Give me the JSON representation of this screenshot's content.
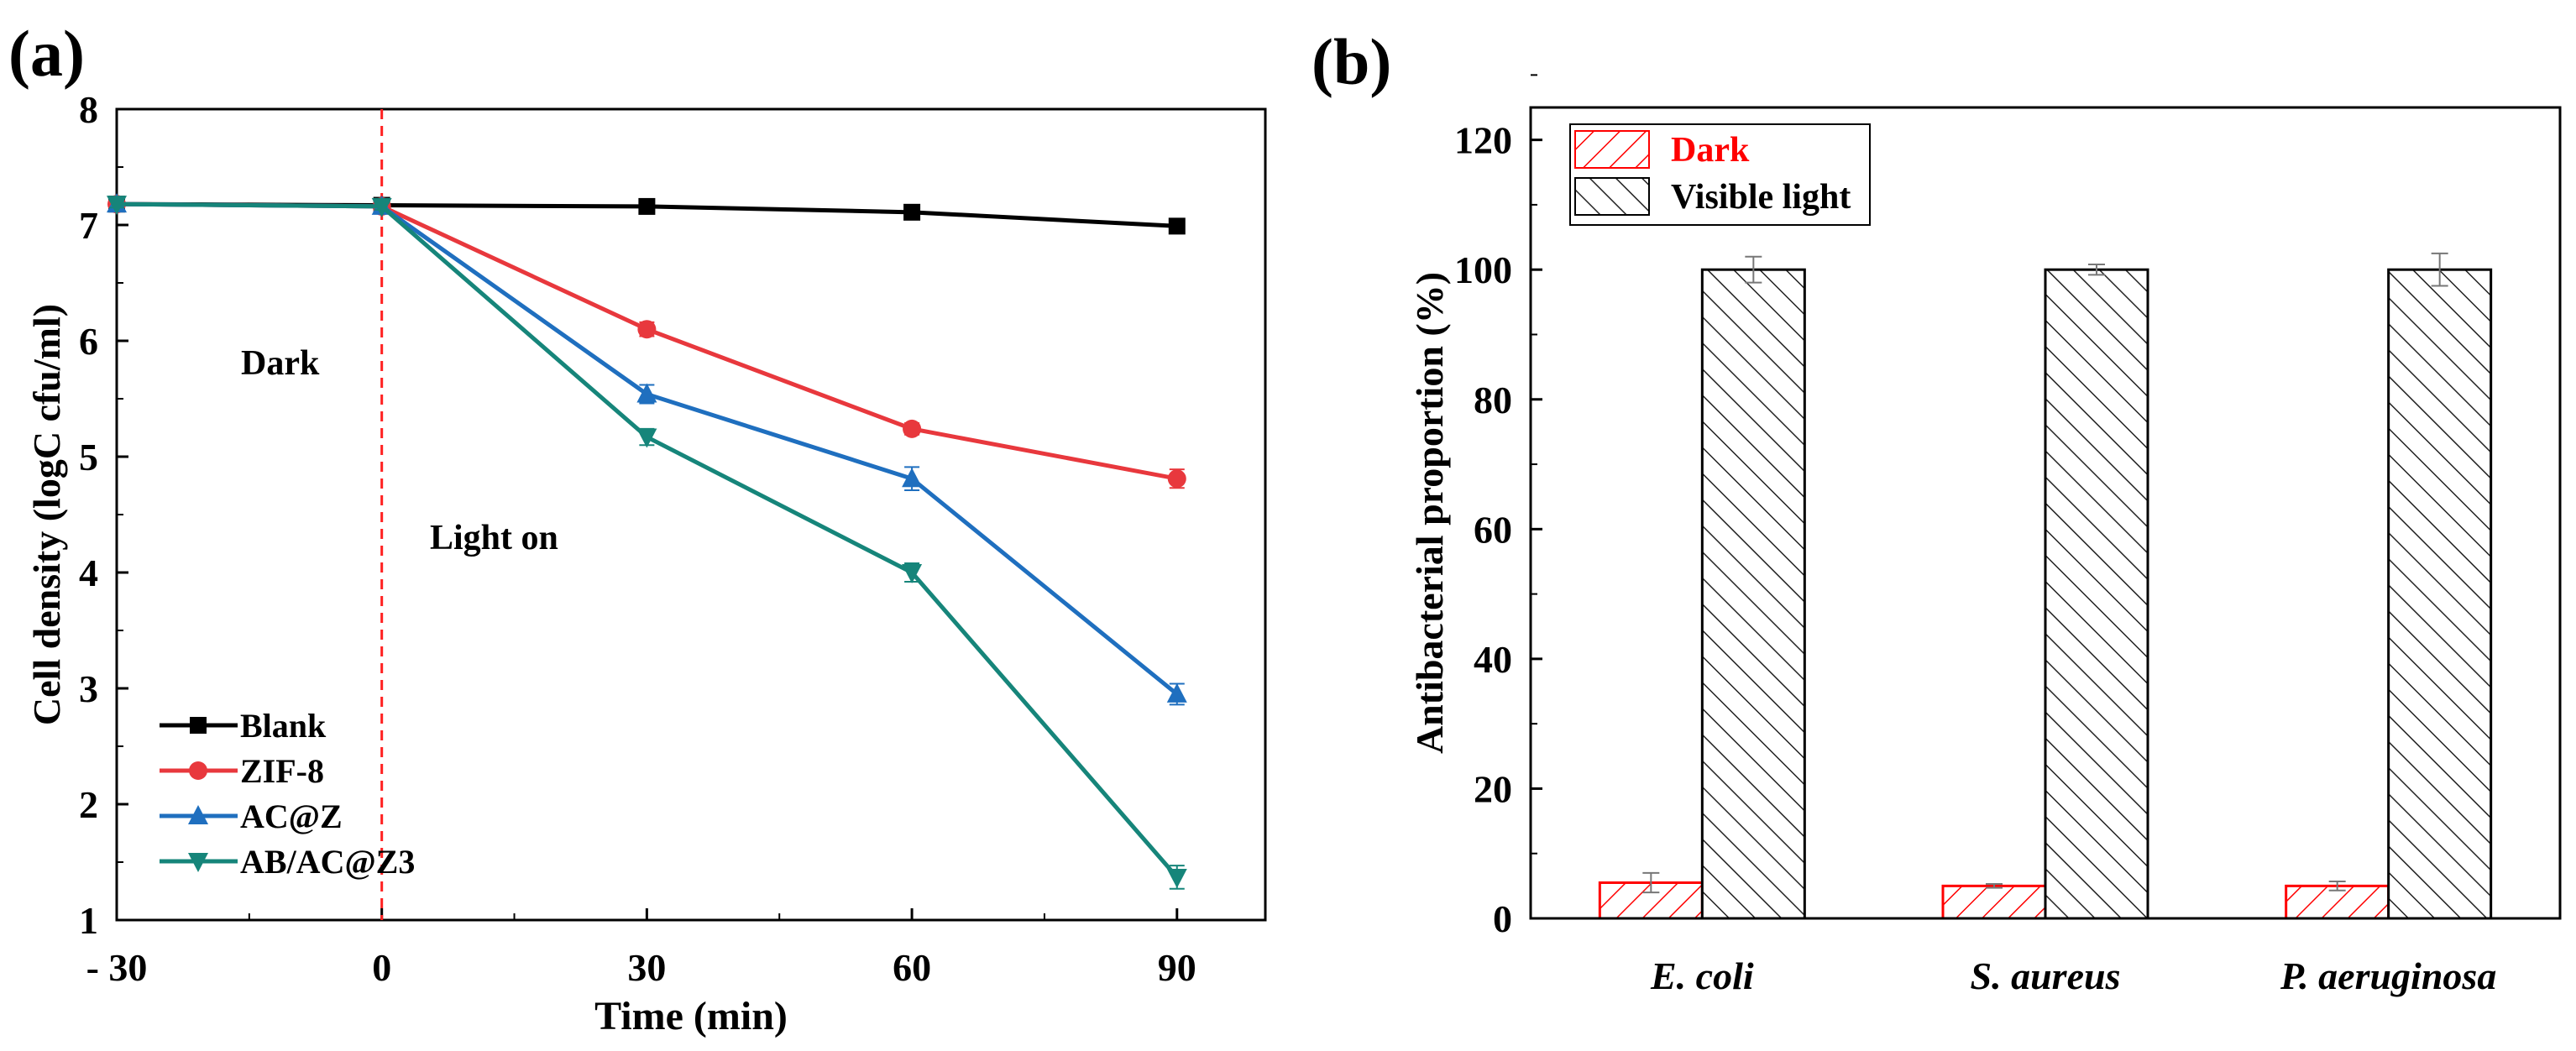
{
  "chart_data": [
    {
      "panel_label": "(a)",
      "type": "line",
      "xlabel": "Time (min)",
      "ylabel": "Cell density (logC cfu/ml)",
      "xlim": [
        -30,
        100
      ],
      "ylim": [
        1,
        8
      ],
      "xticks": [
        -30,
        0,
        30,
        60,
        90
      ],
      "xtick_labels": [
        "- 30",
        "0",
        "30",
        "60",
        "90"
      ],
      "yticks": [
        1,
        2,
        3,
        4,
        5,
        6,
        7,
        8
      ],
      "x": [
        -30,
        0,
        30,
        60,
        90
      ],
      "annotations": [
        "Dark",
        "Light on"
      ],
      "vline_x": 0,
      "legend_position": "bottom-left",
      "series": [
        {
          "name": "Blank",
          "color": "#000000",
          "marker": "square",
          "values": [
            7.18,
            7.17,
            7.16,
            7.11,
            6.99
          ],
          "errors": [
            0.03,
            0.03,
            0.03,
            0.04,
            0.05
          ]
        },
        {
          "name": "ZIF-8",
          "color": "#e8383d",
          "marker": "circle",
          "values": [
            7.18,
            7.16,
            6.1,
            5.24,
            4.81
          ],
          "errors": [
            0.03,
            0.03,
            0.06,
            0.05,
            0.08
          ]
        },
        {
          "name": "AC@Z",
          "color": "#1f6fbf",
          "marker": "triangle-up",
          "values": [
            7.18,
            7.16,
            5.54,
            4.81,
            2.95
          ],
          "errors": [
            0.03,
            0.03,
            0.08,
            0.1,
            0.09
          ]
        },
        {
          "name": "AB/AC@Z3",
          "color": "#16857a",
          "marker": "triangle-down",
          "values": [
            7.18,
            7.16,
            5.17,
            4.0,
            1.37
          ],
          "errors": [
            0.03,
            0.03,
            0.07,
            0.08,
            0.1
          ]
        }
      ]
    },
    {
      "panel_label": "(b)",
      "type": "bar",
      "xlabel": "",
      "ylabel": "Antibacterial proportion (%)",
      "ylim": [
        0,
        125
      ],
      "yticks": [
        0,
        20,
        40,
        60,
        80,
        100,
        120
      ],
      "categories": [
        "E. coli",
        "S. aureus",
        "P. aeruginosa"
      ],
      "legend_position": "top-left",
      "series": [
        {
          "name": "Dark",
          "color": "#ff0000",
          "hatch": "backslash",
          "values": [
            5.5,
            5.0,
            5.0
          ],
          "errors": [
            1.5,
            0.3,
            0.7
          ]
        },
        {
          "name": "Visible light",
          "color": "#000000",
          "hatch": "slash",
          "values": [
            100,
            100,
            100
          ],
          "errors": [
            2.0,
            0.8,
            2.5
          ]
        }
      ]
    }
  ]
}
